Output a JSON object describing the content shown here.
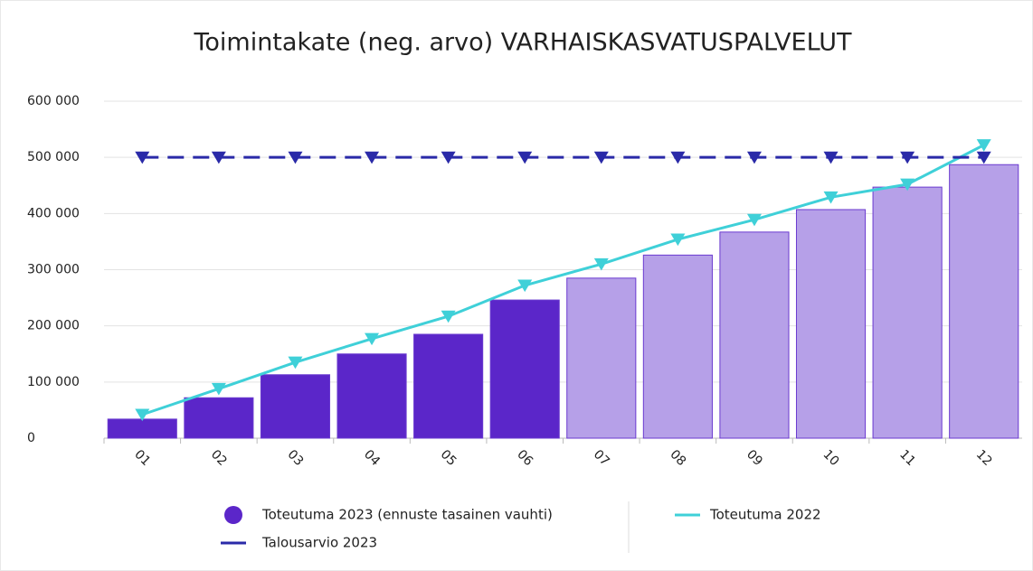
{
  "chart_data": {
    "type": "bar",
    "title": "Toimintakate (neg. arvo) VARHAISKASVATUSPALVELUT",
    "categories": [
      "01",
      "02",
      "03",
      "04",
      "05",
      "06",
      "07",
      "08",
      "09",
      "10",
      "11",
      "12"
    ],
    "series": [
      {
        "name": "Toteutuma 2023 (ennuste tasainen vauhti)",
        "type": "bar",
        "color": "#5b26c9",
        "colors": [
          "#5b26c9",
          "#5b26c9",
          "#5b26c9",
          "#5b26c9",
          "#5b26c9",
          "#5b26c9",
          "#b6a0e8",
          "#b6a0e8",
          "#b6a0e8",
          "#b6a0e8",
          "#b6a0e8",
          "#b6a0e8"
        ],
        "values": [
          34000,
          72000,
          113000,
          150000,
          185000,
          246000,
          285000,
          326000,
          367000,
          407000,
          447000,
          487000
        ]
      },
      {
        "name": "Toteutuma 2022",
        "type": "line",
        "color": "#3fd0d8",
        "marker": "triangle-down",
        "values": [
          42000,
          88000,
          135000,
          177000,
          217000,
          272000,
          310000,
          354000,
          389000,
          429000,
          452000,
          522000
        ]
      },
      {
        "name": "Talousarvio 2023",
        "type": "line",
        "color": "#2a2aa8",
        "marker": "triangle-down",
        "dashed": true,
        "values": [
          500000,
          500000,
          500000,
          500000,
          500000,
          500000,
          500000,
          500000,
          500000,
          500000,
          500000,
          500000
        ]
      }
    ],
    "ylim": [
      0,
      600000
    ],
    "yticks": [
      0,
      {
        "value": 100000,
        "label": "100 000"
      },
      {
        "value": 200000,
        "label": "200 000"
      },
      {
        "value": 300000,
        "label": "300 000"
      },
      {
        "value": 400000,
        "label": "400 000"
      },
      {
        "value": 500000,
        "label": "500 000"
      },
      {
        "value": 600000,
        "label": "600 000"
      }
    ],
    "grid": true
  }
}
